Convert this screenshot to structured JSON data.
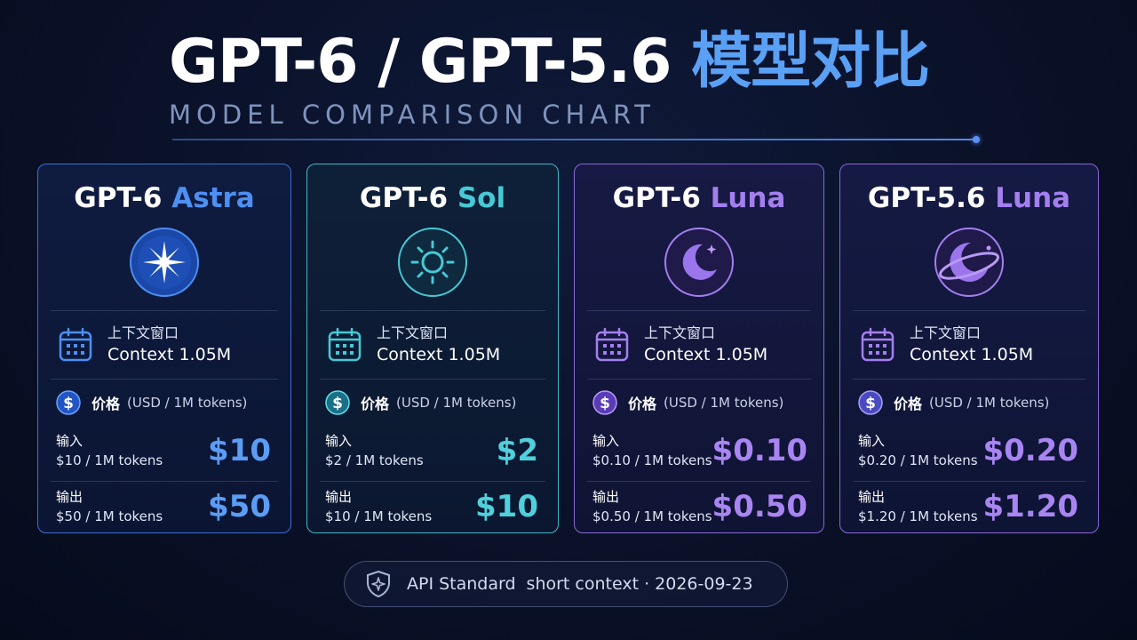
{
  "header": {
    "title_main": "GPT-6 / GPT-5.6 ",
    "title_highlight": "模型对比",
    "subtitle": "MODEL COMPARISON CHART"
  },
  "cards": [
    {
      "title_base": "GPT-6 ",
      "title_accent": "Astra",
      "emblem_icon": "star-burst-icon",
      "accent_color": "#4d8ff2",
      "context_label": "上下文窗口",
      "context_value": "Context 1.05M",
      "price_label": "价格",
      "price_unit": "(USD / 1M tokens)",
      "input_label": "输入",
      "input_sub": "$10 / 1M tokens",
      "input_price": "$10",
      "output_label": "输出",
      "output_sub": "$50 / 1M tokens",
      "output_price": "$50"
    },
    {
      "title_base": "GPT-6 ",
      "title_accent": "Sol",
      "emblem_icon": "sun-icon",
      "accent_color": "#46c9d6",
      "context_label": "上下文窗口",
      "context_value": "Context 1.05M",
      "price_label": "价格",
      "price_unit": "(USD / 1M tokens)",
      "input_label": "输入",
      "input_sub": "$2 / 1M tokens",
      "input_price": "$2",
      "output_label": "输出",
      "output_sub": "$10 / 1M tokens",
      "output_price": "$10"
    },
    {
      "title_base": "GPT-6 ",
      "title_accent": "Luna",
      "emblem_icon": "crescent-moon-icon",
      "accent_color": "#a47ff0",
      "context_label": "上下文窗口",
      "context_value": "Context 1.05M",
      "price_label": "价格",
      "price_unit": "(USD / 1M tokens)",
      "input_label": "输入",
      "input_sub": "$0.10 / 1M tokens",
      "input_price": "$0.10",
      "output_label": "输出",
      "output_sub": "$0.50 / 1M tokens",
      "output_price": "$0.50"
    },
    {
      "title_base": "GPT-5.6 ",
      "title_accent": "Luna",
      "emblem_icon": "moon-planet-icon",
      "accent_color": "#a47ff0",
      "context_label": "上下文窗口",
      "context_value": "Context 1.05M",
      "price_label": "价格",
      "price_unit": "(USD / 1M tokens)",
      "input_label": "输入",
      "input_sub": "$0.20 / 1M tokens",
      "input_price": "$0.20",
      "output_label": "输出",
      "output_sub": "$1.20 / 1M tokens",
      "output_price": "$1.20"
    }
  ],
  "footer": {
    "part1": "API Standard",
    "part2": "short context · 2026-09-23",
    "icon": "shield-star-icon"
  }
}
